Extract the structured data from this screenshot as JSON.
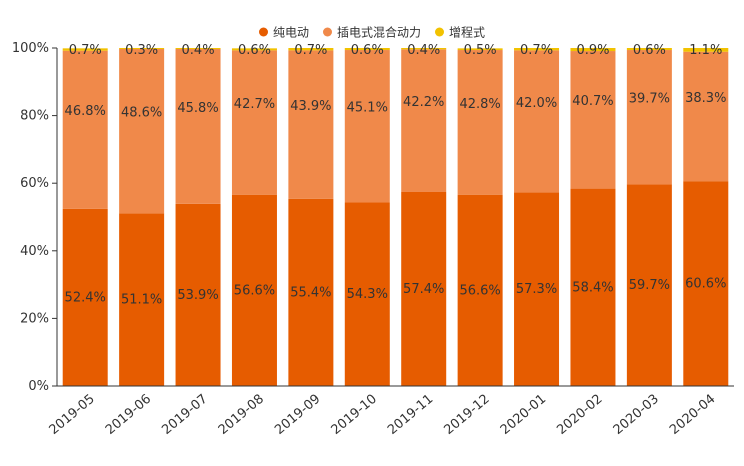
{
  "chart_data": {
    "type": "bar",
    "stacked": true,
    "legend_position": "top-center",
    "grid": false,
    "ylim": [
      0,
      100
    ],
    "y_ticks": [
      "0%",
      "20%",
      "40%",
      "60%",
      "80%",
      "100%"
    ],
    "categories": [
      "2019-05",
      "2019-06",
      "2019-07",
      "2019-08",
      "2019-09",
      "2019-10",
      "2019-11",
      "2019-12",
      "2020-01",
      "2020-02",
      "2020-03",
      "2020-04"
    ],
    "series": [
      {
        "name": "纯电动",
        "color": "#e65c00",
        "values": [
          52.4,
          51.1,
          53.9,
          56.6,
          55.4,
          54.3,
          57.4,
          56.6,
          57.3,
          58.4,
          59.7,
          60.6
        ],
        "labels": [
          "52.4%",
          "51.1%",
          "53.9%",
          "56.6%",
          "55.4%",
          "54.3%",
          "57.4%",
          "56.6%",
          "57.3%",
          "58.4%",
          "59.7%",
          "60.6%"
        ]
      },
      {
        "name": "插电式混合动力",
        "color": "#f0894a",
        "values": [
          46.8,
          48.6,
          45.8,
          42.7,
          43.9,
          45.1,
          42.2,
          42.8,
          42.0,
          40.7,
          39.7,
          38.3
        ],
        "labels": [
          "46.8%",
          "48.6%",
          "45.8%",
          "42.7%",
          "43.9%",
          "45.1%",
          "42.2%",
          "42.8%",
          "42.0%",
          "40.7%",
          "39.7%",
          "38.3%"
        ]
      },
      {
        "name": "增程式",
        "color": "#f2c200",
        "values": [
          0.7,
          0.3,
          0.4,
          0.6,
          0.7,
          0.6,
          0.4,
          0.5,
          0.7,
          0.9,
          0.6,
          1.1
        ],
        "labels": [
          "0.7%",
          "0.3%",
          "0.4%",
          "0.6%",
          "0.7%",
          "0.6%",
          "0.4%",
          "0.5%",
          "0.7%",
          "0.9%",
          "0.6%",
          "1.1%"
        ]
      }
    ]
  }
}
